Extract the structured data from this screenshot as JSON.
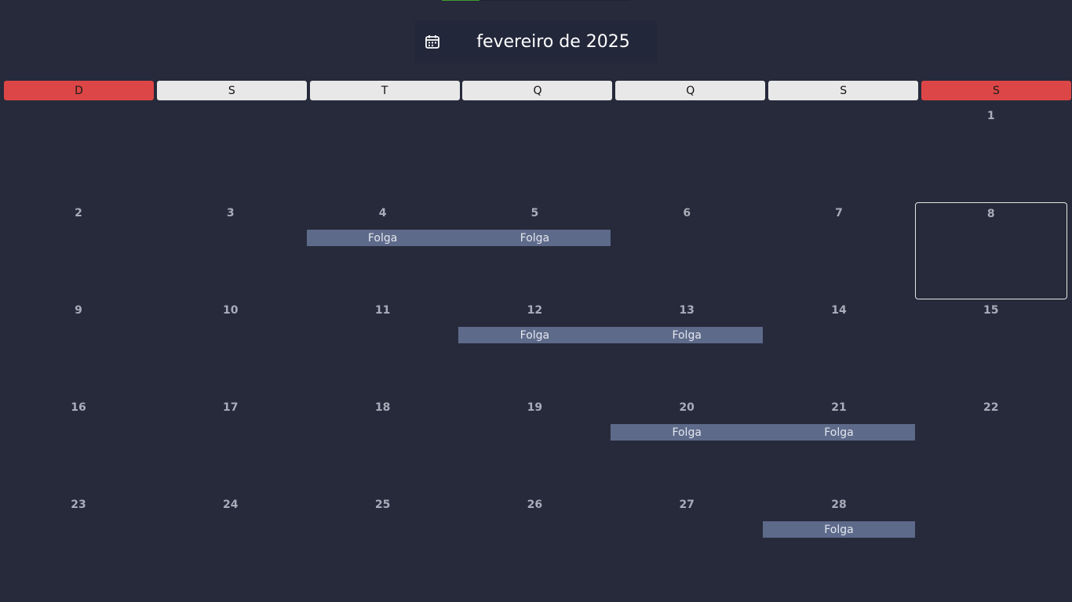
{
  "header": {
    "month_title": "fevereiro de 2025",
    "icon": "calendar-icon"
  },
  "weekdays": [
    {
      "label": "D",
      "weekend": true
    },
    {
      "label": "S",
      "weekend": false
    },
    {
      "label": "T",
      "weekend": false
    },
    {
      "label": "Q",
      "weekend": false
    },
    {
      "label": "Q",
      "weekend": false
    },
    {
      "label": "S",
      "weekend": false
    },
    {
      "label": "S",
      "weekend": true
    }
  ],
  "weeks": [
    [
      "",
      "",
      "",
      "",
      "",
      "",
      "1"
    ],
    [
      "2",
      "3",
      "4",
      "5",
      "6",
      "7",
      "8"
    ],
    [
      "9",
      "10",
      "11",
      "12",
      "13",
      "14",
      "15"
    ],
    [
      "16",
      "17",
      "18",
      "19",
      "20",
      "21",
      "22"
    ],
    [
      "23",
      "24",
      "25",
      "26",
      "27",
      "28",
      ""
    ]
  ],
  "selected_day": "8",
  "events": [
    {
      "day": "4",
      "label": "Folga"
    },
    {
      "day": "5",
      "label": "Folga"
    },
    {
      "day": "12",
      "label": "Folga"
    },
    {
      "day": "13",
      "label": "Folga"
    },
    {
      "day": "20",
      "label": "Folga"
    },
    {
      "day": "21",
      "label": "Folga"
    },
    {
      "day": "28",
      "label": "Folga"
    }
  ],
  "colors": {
    "background": "#262a3b",
    "weekend_header": "#dc4646",
    "weekday_header": "#e8e8e8",
    "event": "#5e6a8a"
  }
}
